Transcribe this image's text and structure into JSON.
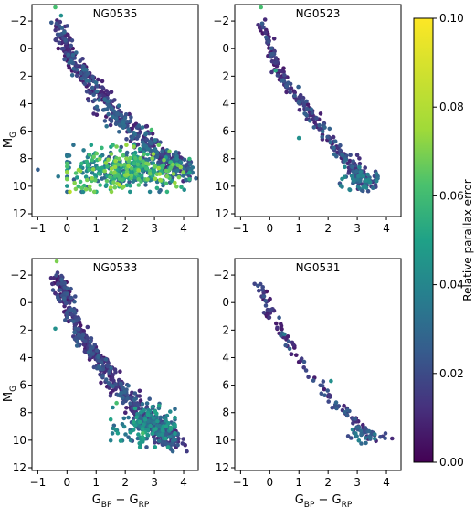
{
  "figure": {
    "axis_labels": {
      "x_main": "G",
      "x_sub1": "BP",
      "x_minus": " − G",
      "x_sub2": "RP",
      "y_main": "M",
      "y_sub": "G"
    },
    "colorbar": {
      "label": "Relative parallax error",
      "ticks": [
        "0.00",
        "0.02",
        "0.04",
        "0.06",
        "0.08",
        "0.10"
      ]
    }
  },
  "chart_data": {
    "type": "scatter",
    "x_range": [
      -1.2,
      4.5
    ],
    "y_range": [
      12.2,
      -3.2
    ],
    "x_ticks": [
      -1,
      0,
      1,
      2,
      3,
      4
    ],
    "y_ticks": [
      -2,
      0,
      2,
      4,
      6,
      8,
      10,
      12
    ],
    "x_tick_labels": [
      "−1",
      "0",
      "1",
      "2",
      "3",
      "4"
    ],
    "y_tick_labels": [
      "−2",
      "0",
      "2",
      "4",
      "6",
      "8",
      "10",
      "12"
    ],
    "y_inverted": true,
    "colormap": "viridis",
    "color_range": [
      0.0,
      0.1
    ],
    "panels": [
      {
        "title": "NG0535",
        "highlights": [
          [
            -0.4,
            -3.0,
            0.07
          ],
          [
            -0.2,
            -2.4,
            0.05
          ],
          [
            0.3,
            10.2,
            0.08
          ],
          [
            0.1,
            10.4,
            0.09
          ],
          [
            1.5,
            10.1,
            0.085
          ],
          [
            1.8,
            9.9,
            0.09
          ],
          [
            2.9,
            5.9,
            0.07
          ],
          [
            3.4,
            9.8,
            0.07
          ],
          [
            -0.3,
            9.3,
            0.04
          ],
          [
            -1.0,
            8.8,
            0.03
          ]
        ],
        "clusters": [
          {
            "kind": "track",
            "n": 520,
            "path": [
              [
                -0.3,
                -2.0
              ],
              [
                0.0,
                0.0
              ],
              [
                0.4,
                1.5
              ],
              [
                1.0,
                3.0
              ],
              [
                1.5,
                4.5
              ],
              [
                2.0,
                5.5
              ],
              [
                2.6,
                6.5
              ],
              [
                3.1,
                7.5
              ],
              [
                3.6,
                8.4
              ],
              [
                4.0,
                9.0
              ]
            ],
            "spread": [
              0.25,
              0.6
            ],
            "c_range": [
              0.005,
              0.035
            ]
          },
          {
            "kind": "blob",
            "n": 420,
            "cx": 2.1,
            "cy": 8.8,
            "sx": 1.0,
            "sy": 0.75,
            "x_clip": [
              0.0,
              4.2
            ],
            "y_clip": [
              7.0,
              10.4
            ],
            "c_range": [
              0.025,
              0.085
            ]
          }
        ]
      },
      {
        "title": "NG0523",
        "highlights": [
          [
            -0.3,
            -3.0,
            0.07
          ],
          [
            0.2,
            1.6,
            0.06
          ],
          [
            1.0,
            6.5,
            0.05
          ]
        ],
        "clusters": [
          {
            "kind": "track",
            "n": 260,
            "path": [
              [
                -0.3,
                -2.0
              ],
              [
                0.0,
                -0.3
              ],
              [
                0.3,
                1.8
              ],
              [
                0.9,
                3.5
              ],
              [
                1.5,
                5.0
              ],
              [
                2.0,
                6.5
              ],
              [
                2.5,
                7.7
              ],
              [
                3.0,
                8.8
              ],
              [
                3.5,
                10.2
              ]
            ],
            "spread": [
              0.15,
              0.35
            ],
            "c_range": [
              0.005,
              0.03
            ]
          },
          {
            "kind": "blob",
            "n": 70,
            "cx": 3.1,
            "cy": 9.5,
            "sx": 0.35,
            "sy": 0.4,
            "x_clip": [
              2.4,
              3.7
            ],
            "y_clip": [
              8.6,
              10.4
            ],
            "c_range": [
              0.02,
              0.05
            ]
          }
        ]
      },
      {
        "title": "NG0533",
        "highlights": [
          [
            -0.35,
            -3.0,
            0.08
          ],
          [
            -0.4,
            1.9,
            0.05
          ],
          [
            2.6,
            9.5,
            0.07
          ],
          [
            1.7,
            7.3,
            0.07
          ]
        ],
        "clusters": [
          {
            "kind": "track",
            "n": 640,
            "path": [
              [
                -0.3,
                -2.0
              ],
              [
                0.0,
                0.0
              ],
              [
                0.5,
                2.5
              ],
              [
                1.0,
                4.0
              ],
              [
                1.6,
                5.8
              ],
              [
                2.2,
                7.2
              ],
              [
                2.8,
                8.5
              ],
              [
                3.3,
                9.5
              ],
              [
                3.6,
                10.3
              ]
            ],
            "spread": [
              0.22,
              0.45
            ],
            "c_range": [
              0.005,
              0.03
            ]
          },
          {
            "kind": "blob",
            "n": 180,
            "cx": 2.9,
            "cy": 9.0,
            "sx": 0.55,
            "sy": 0.7,
            "x_clip": [
              1.5,
              3.7
            ],
            "y_clip": [
              7.0,
              10.5
            ],
            "c_range": [
              0.025,
              0.06
            ]
          }
        ]
      },
      {
        "title": "NG0531",
        "highlights": [
          [
            0.5,
            2.3,
            0.04
          ],
          [
            2.1,
            5.7,
            0.05
          ]
        ],
        "clusters": [
          {
            "kind": "track",
            "n": 130,
            "path": [
              [
                -0.3,
                -1.6
              ],
              [
                0.0,
                0.7
              ],
              [
                0.5,
                2.5
              ],
              [
                1.2,
                4.5
              ],
              [
                1.8,
                6.2
              ],
              [
                2.3,
                7.4
              ],
              [
                2.8,
                8.5
              ],
              [
                3.3,
                9.5
              ],
              [
                3.9,
                9.8
              ]
            ],
            "spread": [
              0.2,
              0.35
            ],
            "c_range": [
              0.005,
              0.03
            ]
          },
          {
            "kind": "blob",
            "n": 25,
            "cx": 3.2,
            "cy": 9.6,
            "sx": 0.25,
            "sy": 0.25,
            "x_clip": [
              2.6,
              3.6
            ],
            "y_clip": [
              9.0,
              10.4
            ],
            "c_range": [
              0.02,
              0.045
            ]
          }
        ]
      }
    ]
  }
}
